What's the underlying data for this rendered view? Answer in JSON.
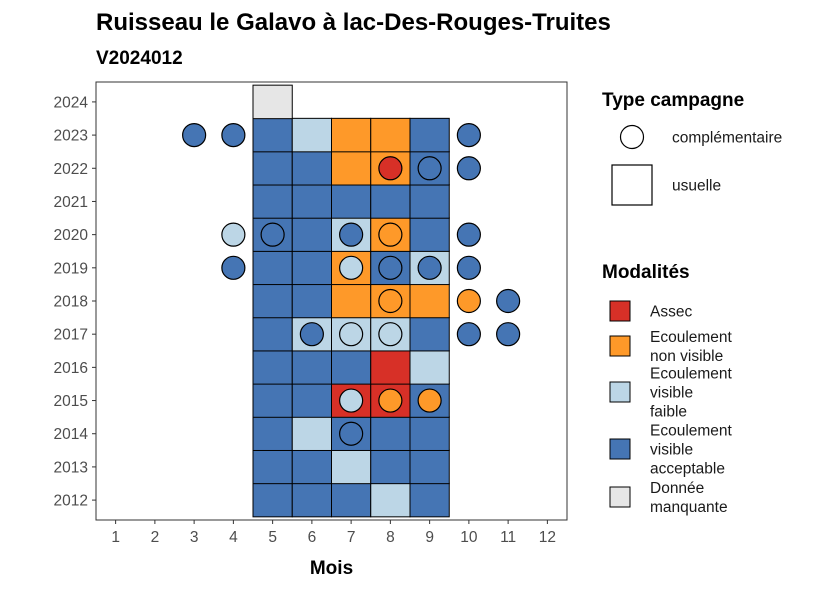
{
  "chart_data": {
    "type": "heatmap",
    "title": "Ruisseau le Galavo à lac-Des-Rouges-Truites",
    "subtitle": "V2024012",
    "xlabel": "Mois",
    "ylabel": "",
    "x_ticks": [
      1,
      2,
      3,
      4,
      5,
      6,
      7,
      8,
      9,
      10,
      11,
      12
    ],
    "y_ticks": [
      2012,
      2013,
      2014,
      2015,
      2016,
      2017,
      2018,
      2019,
      2020,
      2021,
      2022,
      2023,
      2024
    ],
    "xlim": [
      0.5,
      12.5
    ],
    "ylim": [
      2011.4,
      2024.6
    ],
    "modalites": [
      {
        "key": "A",
        "label": "Assec",
        "color": "#d73027"
      },
      {
        "key": "N",
        "label": "Ecoulement non visible",
        "color": "#fe9929"
      },
      {
        "key": "F",
        "label": "Ecoulement visible faible",
        "color": "#bcd6e6"
      },
      {
        "key": "V",
        "label": "Ecoulement visible acceptable",
        "color": "#4575b4"
      },
      {
        "key": "M",
        "label": "Donnée manquante",
        "color": "#e6e6e6"
      }
    ],
    "legend": {
      "type_title": "Type campagne",
      "type_items": [
        {
          "label": "complémentaire",
          "shape": "circle"
        },
        {
          "label": "usuelle",
          "shape": "square"
        }
      ],
      "modalite_title": "Modalités",
      "modalite_label_lines": [
        [
          "Assec"
        ],
        [
          "Ecoulement",
          "non visible"
        ],
        [
          "Ecoulement",
          "visible",
          "faible"
        ],
        [
          "Ecoulement",
          "visible",
          "acceptable"
        ],
        [
          "Donnée",
          "manquante"
        ]
      ]
    },
    "usuelle": [
      {
        "year": 2012,
        "months": [
          5,
          6,
          7,
          8,
          9
        ],
        "values": [
          "V",
          "V",
          "V",
          "F",
          "V"
        ]
      },
      {
        "year": 2013,
        "months": [
          5,
          6,
          7,
          8,
          9
        ],
        "values": [
          "V",
          "V",
          "F",
          "V",
          "V"
        ]
      },
      {
        "year": 2014,
        "months": [
          5,
          6,
          7,
          8,
          9
        ],
        "values": [
          "V",
          "F",
          "V",
          "V",
          "V"
        ]
      },
      {
        "year": 2015,
        "months": [
          5,
          6,
          7,
          8,
          9
        ],
        "values": [
          "V",
          "V",
          "A",
          "A",
          "V"
        ]
      },
      {
        "year": 2016,
        "months": [
          5,
          6,
          7,
          8,
          9
        ],
        "values": [
          "V",
          "V",
          "V",
          "A",
          "F"
        ]
      },
      {
        "year": 2017,
        "months": [
          5,
          6,
          7,
          8,
          9
        ],
        "values": [
          "V",
          "F",
          "F",
          "F",
          "V"
        ]
      },
      {
        "year": 2018,
        "months": [
          5,
          6,
          7,
          8,
          9
        ],
        "values": [
          "V",
          "V",
          "N",
          "N",
          "N"
        ]
      },
      {
        "year": 2019,
        "months": [
          5,
          6,
          7,
          8,
          9
        ],
        "values": [
          "V",
          "V",
          "N",
          "V",
          "F"
        ]
      },
      {
        "year": 2020,
        "months": [
          5,
          6,
          7,
          8,
          9
        ],
        "values": [
          "V",
          "V",
          "F",
          "N",
          "V"
        ]
      },
      {
        "year": 2021,
        "months": [
          5,
          6,
          7,
          8,
          9
        ],
        "values": [
          "V",
          "V",
          "V",
          "V",
          "V"
        ]
      },
      {
        "year": 2022,
        "months": [
          5,
          6,
          7,
          8,
          9
        ],
        "values": [
          "V",
          "V",
          "N",
          "N",
          "V"
        ]
      },
      {
        "year": 2023,
        "months": [
          5,
          6,
          7,
          8,
          9
        ],
        "values": [
          "V",
          "F",
          "N",
          "N",
          "V"
        ]
      },
      {
        "year": 2024,
        "months": [
          5
        ],
        "values": [
          "M"
        ]
      }
    ],
    "complementaire": [
      {
        "year": 2023,
        "month": 3,
        "value": "V"
      },
      {
        "year": 2023,
        "month": 4,
        "value": "V"
      },
      {
        "year": 2023,
        "month": 10,
        "value": "V"
      },
      {
        "year": 2022,
        "month": 8,
        "value": "A"
      },
      {
        "year": 2022,
        "month": 9,
        "value": "V"
      },
      {
        "year": 2022,
        "month": 10,
        "value": "V"
      },
      {
        "year": 2020,
        "month": 4,
        "value": "F"
      },
      {
        "year": 2020,
        "month": 5,
        "value": "V"
      },
      {
        "year": 2020,
        "month": 7,
        "value": "V"
      },
      {
        "year": 2020,
        "month": 8,
        "value": "N"
      },
      {
        "year": 2020,
        "month": 10,
        "value": "V"
      },
      {
        "year": 2019,
        "month": 4,
        "value": "V"
      },
      {
        "year": 2019,
        "month": 7,
        "value": "F"
      },
      {
        "year": 2019,
        "month": 8,
        "value": "V"
      },
      {
        "year": 2019,
        "month": 9,
        "value": "V"
      },
      {
        "year": 2019,
        "month": 10,
        "value": "V"
      },
      {
        "year": 2018,
        "month": 8,
        "value": "N"
      },
      {
        "year": 2018,
        "month": 10,
        "value": "N"
      },
      {
        "year": 2018,
        "month": 11,
        "value": "V"
      },
      {
        "year": 2017,
        "month": 6,
        "value": "V"
      },
      {
        "year": 2017,
        "month": 7,
        "value": "F"
      },
      {
        "year": 2017,
        "month": 8,
        "value": "F"
      },
      {
        "year": 2017,
        "month": 10,
        "value": "V"
      },
      {
        "year": 2017,
        "month": 11,
        "value": "V"
      },
      {
        "year": 2015,
        "month": 7,
        "value": "F"
      },
      {
        "year": 2015,
        "month": 8,
        "value": "N"
      },
      {
        "year": 2015,
        "month": 9,
        "value": "N"
      },
      {
        "year": 2014,
        "month": 7,
        "value": "V"
      }
    ]
  }
}
